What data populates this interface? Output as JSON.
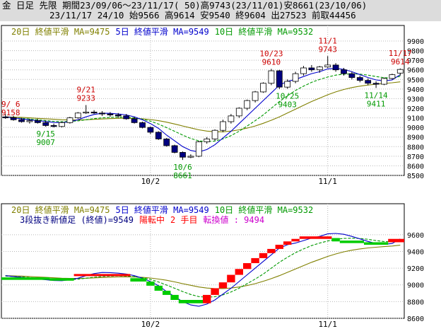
{
  "header": {
    "line1": "金 日足 先限 期間23/09/06〜23/11/17( 50)高9743(23/11/01)安8661(23/10/06)",
    "line2": "23/11/17 24/10 始9566 高9614 安9540 終9604 出27523 前取44456"
  },
  "colors": {
    "bull_candle": "#ffffff",
    "bear_candle": "#000080",
    "ma5": "#0000cc",
    "ma10": "#009900",
    "ma20": "#808000",
    "renko_up": "#ff0000",
    "renko_down": "#00cc00",
    "high_label": "#cc0000",
    "low_label": "#009900",
    "status_red": "#ff0000",
    "status_magenta": "#cc00cc",
    "status_blue": "#000080"
  },
  "chart_data": [
    {
      "type": "candlestick",
      "legend": [
        {
          "text": "20日 終値平滑 MA=9475",
          "color": "#808000"
        },
        {
          "text": "5日 終値平滑 MA=9549",
          "color": "#0000cc"
        },
        {
          "text": "10日 終値平滑 MA=9532",
          "color": "#009900"
        }
      ],
      "ylim": [
        8500,
        9900
      ],
      "yticks": [
        8500,
        8600,
        8700,
        8800,
        8900,
        9000,
        9100,
        9200,
        9300,
        9400,
        9500,
        9600,
        9700,
        9800,
        9900
      ],
      "xticks": [
        {
          "label": "10/2",
          "index": 18
        },
        {
          "label": "11/1",
          "index": 40
        }
      ],
      "ohlc": [
        [
          9110,
          9140,
          9090,
          9100
        ],
        [
          9100,
          9120,
          9070,
          9080
        ],
        [
          9080,
          9100,
          9050,
          9060
        ],
        [
          9060,
          9090,
          9040,
          9070
        ],
        [
          9070,
          9090,
          9040,
          9050
        ],
        [
          9050,
          9070,
          9007,
          9020
        ],
        [
          9020,
          9040,
          9000,
          9010
        ],
        [
          9010,
          9060,
          9000,
          9050
        ],
        [
          9050,
          9110,
          9040,
          9100
        ],
        [
          9100,
          9160,
          9090,
          9150
        ],
        [
          9150,
          9233,
          9140,
          9160
        ],
        [
          9160,
          9180,
          9140,
          9150
        ],
        [
          9150,
          9170,
          9120,
          9140
        ],
        [
          9140,
          9160,
          9110,
          9130
        ],
        [
          9130,
          9150,
          9100,
          9120
        ],
        [
          9120,
          9140,
          9080,
          9090
        ],
        [
          9090,
          9110,
          9040,
          9050
        ],
        [
          9050,
          9060,
          8990,
          9000
        ],
        [
          9000,
          9010,
          8930,
          8950
        ],
        [
          8950,
          8960,
          8870,
          8880
        ],
        [
          8880,
          8890,
          8800,
          8810
        ],
        [
          8810,
          8820,
          8730,
          8740
        ],
        [
          8740,
          8750,
          8661,
          8690
        ],
        [
          8690,
          8720,
          8680,
          8700
        ],
        [
          8700,
          8860,
          8690,
          8850
        ],
        [
          8850,
          8900,
          8830,
          8880
        ],
        [
          8880,
          8980,
          8860,
          8970
        ],
        [
          8970,
          9080,
          8950,
          9060
        ],
        [
          9060,
          9140,
          9040,
          9120
        ],
        [
          9120,
          9210,
          9100,
          9200
        ],
        [
          9200,
          9290,
          9180,
          9280
        ],
        [
          9280,
          9380,
          9260,
          9370
        ],
        [
          9370,
          9470,
          9360,
          9460
        ],
        [
          9460,
          9610,
          9440,
          9590
        ],
        [
          9590,
          9600,
          9400,
          9420
        ],
        [
          9420,
          9500,
          9403,
          9480
        ],
        [
          9480,
          9580,
          9460,
          9560
        ],
        [
          9560,
          9640,
          9540,
          9620
        ],
        [
          9620,
          9650,
          9580,
          9600
        ],
        [
          9600,
          9640,
          9570,
          9630
        ],
        [
          9630,
          9743,
          9620,
          9650
        ],
        [
          9650,
          9670,
          9580,
          9600
        ],
        [
          9600,
          9620,
          9540,
          9560
        ],
        [
          9560,
          9580,
          9500,
          9520
        ],
        [
          9520,
          9540,
          9470,
          9490
        ],
        [
          9490,
          9510,
          9440,
          9460
        ],
        [
          9460,
          9480,
          9411,
          9450
        ],
        [
          9450,
          9520,
          9440,
          9510
        ],
        [
          9510,
          9560,
          9500,
          9550
        ],
        [
          9566,
          9614,
          9540,
          9604
        ]
      ],
      "ma5": [
        9110,
        9100,
        9090,
        9080,
        9070,
        9062,
        9052,
        9050,
        9060,
        9080,
        9110,
        9135,
        9148,
        9147,
        9140,
        9130,
        9110,
        9080,
        9040,
        8990,
        8920,
        8860,
        8800,
        8760,
        8745,
        8770,
        8820,
        8890,
        8960,
        9040,
        9120,
        9200,
        9280,
        9360,
        9440,
        9480,
        9500,
        9530,
        9560,
        9580,
        9610,
        9615,
        9605,
        9580,
        9550,
        9520,
        9495,
        9485,
        9495,
        9549
      ],
      "ma10": [
        9105,
        9100,
        9095,
        9088,
        9080,
        9072,
        9064,
        9060,
        9062,
        9068,
        9080,
        9092,
        9100,
        9105,
        9108,
        9105,
        9098,
        9085,
        9065,
        9035,
        8998,
        8960,
        8920,
        8885,
        8860,
        8852,
        8858,
        8880,
        8915,
        8960,
        9015,
        9070,
        9130,
        9200,
        9270,
        9330,
        9385,
        9430,
        9470,
        9500,
        9525,
        9545,
        9555,
        9558,
        9555,
        9545,
        9530,
        9518,
        9515,
        9532
      ],
      "ma20": [
        9110,
        9108,
        9105,
        9100,
        9095,
        9090,
        9085,
        9080,
        9078,
        9078,
        9080,
        9084,
        9088,
        9092,
        9095,
        9096,
        9094,
        9090,
        9082,
        9070,
        9055,
        9036,
        9015,
        8995,
        8975,
        8962,
        8955,
        8955,
        8962,
        8975,
        8993,
        9015,
        9043,
        9075,
        9110,
        9150,
        9190,
        9230,
        9270,
        9305,
        9340,
        9370,
        9395,
        9415,
        9430,
        9442,
        9450,
        9458,
        9465,
        9475
      ],
      "high_labels": [
        {
          "date": "9/21",
          "value": "9233",
          "index": 10
        },
        {
          "date": "10/23",
          "value": "9610",
          "index": 33
        },
        {
          "date": "11/1",
          "value": "9743",
          "index": 40
        },
        {
          "date": "11/17",
          "value": "9614",
          "index": 49
        }
      ],
      "low_labels": [
        {
          "date": "9/15",
          "value": "9007",
          "index": 5
        },
        {
          "date": "10/6",
          "value": "8661",
          "index": 22
        },
        {
          "date": "10/25",
          "value": "9403",
          "index": 35
        },
        {
          "date": "11/14",
          "value": "9411",
          "index": 46
        }
      ],
      "edge_label": {
        "date": "9/ 6",
        "value": "9158"
      }
    },
    {
      "type": "three_line_break",
      "legend": [
        {
          "text": "20日 終値平滑 MA=9475",
          "color": "#808000"
        },
        {
          "text": "5日 終値平滑 MA=9549",
          "color": "#0000cc"
        },
        {
          "text": "10日 終値平滑 MA=9532",
          "color": "#009900"
        }
      ],
      "status": [
        {
          "text": "3段抜き新値足 (終値)=9549",
          "color": "#000080"
        },
        {
          "text": "陽転中",
          "color": "#ff0000"
        },
        {
          "text": "2 手目",
          "color": "#ff0000"
        },
        {
          "text": "転換値 : 9494",
          "color": "#cc00cc"
        }
      ],
      "ylim": [
        8600,
        9700
      ],
      "yticks": [
        8600,
        8800,
        9000,
        9200,
        9400,
        9600
      ],
      "xticks": [
        {
          "label": "10/2",
          "index": 18
        },
        {
          "label": "11/1",
          "index": 40
        }
      ],
      "blocks": [
        {
          "s": 0,
          "e": 6,
          "lo": 9060,
          "hi": 9090,
          "up": false
        },
        {
          "s": 6,
          "e": 9,
          "lo": 9050,
          "hi": 9080,
          "up": false
        },
        {
          "s": 9,
          "e": 16,
          "lo": 9110,
          "hi": 9130,
          "up": true
        },
        {
          "s": 16,
          "e": 18,
          "lo": 9040,
          "hi": 9080,
          "up": false
        },
        {
          "s": 18,
          "e": 19,
          "lo": 8990,
          "hi": 9040,
          "up": false
        },
        {
          "s": 19,
          "e": 20,
          "lo": 8930,
          "hi": 8990,
          "up": false
        },
        {
          "s": 20,
          "e": 21,
          "lo": 8880,
          "hi": 8930,
          "up": false
        },
        {
          "s": 21,
          "e": 22,
          "lo": 8820,
          "hi": 8880,
          "up": false
        },
        {
          "s": 22,
          "e": 25,
          "lo": 8780,
          "hi": 8820,
          "up": false
        },
        {
          "s": 25,
          "e": 26,
          "lo": 8780,
          "hi": 8880,
          "up": true
        },
        {
          "s": 26,
          "e": 27,
          "lo": 8880,
          "hi": 8960,
          "up": true
        },
        {
          "s": 27,
          "e": 28,
          "lo": 8960,
          "hi": 9030,
          "up": true
        },
        {
          "s": 28,
          "e": 29,
          "lo": 9030,
          "hi": 9120,
          "up": true
        },
        {
          "s": 29,
          "e": 30,
          "lo": 9120,
          "hi": 9190,
          "up": true
        },
        {
          "s": 30,
          "e": 31,
          "lo": 9190,
          "hi": 9260,
          "up": true
        },
        {
          "s": 31,
          "e": 32,
          "lo": 9260,
          "hi": 9320,
          "up": true
        },
        {
          "s": 32,
          "e": 33,
          "lo": 9320,
          "hi": 9380,
          "up": true
        },
        {
          "s": 33,
          "e": 34,
          "lo": 9380,
          "hi": 9430,
          "up": true
        },
        {
          "s": 34,
          "e": 35,
          "lo": 9430,
          "hi": 9480,
          "up": true
        },
        {
          "s": 35,
          "e": 36,
          "lo": 9480,
          "hi": 9520,
          "up": true
        },
        {
          "s": 36,
          "e": 37,
          "lo": 9520,
          "hi": 9550,
          "up": true
        },
        {
          "s": 37,
          "e": 41,
          "lo": 9550,
          "hi": 9580,
          "up": true
        },
        {
          "s": 41,
          "e": 42,
          "lo": 9520,
          "hi": 9560,
          "up": false
        },
        {
          "s": 42,
          "e": 45,
          "lo": 9500,
          "hi": 9530,
          "up": false
        },
        {
          "s": 45,
          "e": 48,
          "lo": 9480,
          "hi": 9510,
          "up": false
        },
        {
          "s": 48,
          "e": 50,
          "lo": 9510,
          "hi": 9550,
          "up": true
        }
      ]
    }
  ]
}
